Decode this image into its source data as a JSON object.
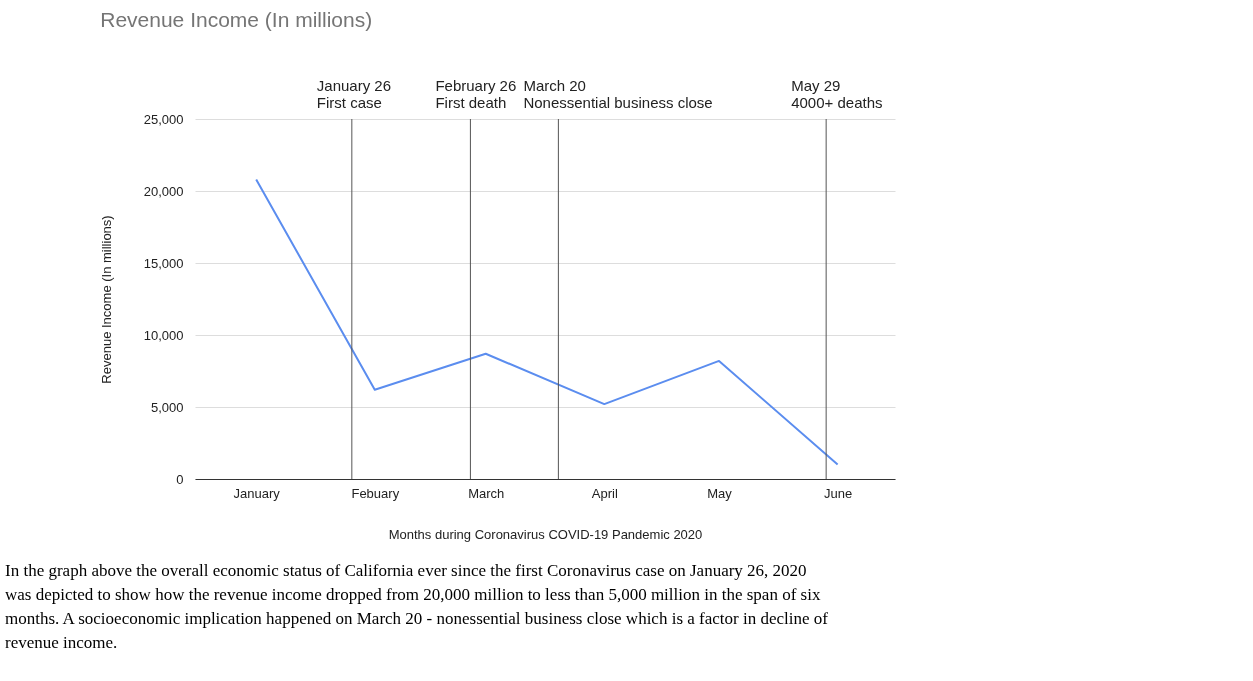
{
  "chart_data": {
    "type": "line",
    "title": "Revenue Income (In millions)",
    "xlabel": "Months during Coronavirus COVID-19 Pandemic 2020",
    "ylabel": "Revenue Income (In millions)",
    "x": [
      "2020-01",
      "2020-02",
      "2020-03",
      "2020-04",
      "2020-05",
      "2020-06"
    ],
    "xlim": [
      "2019-12-16",
      "2020-06-16"
    ],
    "xticks": [
      {
        "value": "2020-01",
        "label": "January"
      },
      {
        "value": "2020-02",
        "label": "Febuary"
      },
      {
        "value": "2020-03",
        "label": "March"
      },
      {
        "value": "2020-04",
        "label": "April"
      },
      {
        "value": "2020-05",
        "label": "May"
      },
      {
        "value": "2020-06",
        "label": "June"
      }
    ],
    "ylim": [
      0,
      25000
    ],
    "yticks": [
      0,
      {
        "value": 5000,
        "label": "5,000"
      },
      {
        "value": 10000,
        "label": "10,000"
      },
      {
        "value": 15000,
        "label": "15,000"
      },
      {
        "value": 20000,
        "label": "20,000"
      },
      {
        "value": 25000,
        "label": "25,000"
      }
    ],
    "series": [
      {
        "color": "#5b8def",
        "values": [
          20800,
          6200,
          8700,
          5200,
          8200,
          1000
        ]
      }
    ],
    "ref_lines": [
      {
        "axis": "x",
        "value": "2020-01-26",
        "label": "January 26\nFirst case"
      },
      {
        "axis": "x",
        "value": "2020-02-26",
        "label": "February 26\nFirst death"
      },
      {
        "axis": "x",
        "value": "2020-03-20",
        "label": "March 20\nNonessential business close"
      },
      {
        "axis": "x",
        "value": "2020-05-29",
        "label": "May 29\n4000+ deaths"
      }
    ],
    "grid": "y",
    "marker": "none",
    "line_style": "solid",
    "annotations": [
      "In the graph above the overall economic status of California ever since the first Coronavirus case on January 26, 2020 was depicted to show how the revenue income dropped from 20,000 million to less than 5,000 million in the span of six months. A socioeconomic implication happened on March 20 - nonessential business close which is a factor in decline of revenue income."
    ]
  }
}
